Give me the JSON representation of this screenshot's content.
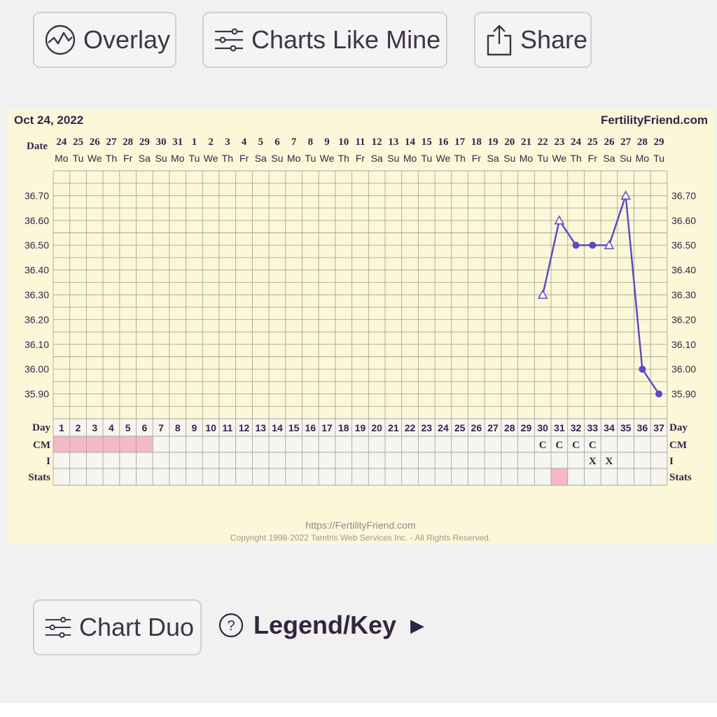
{
  "toolbar": {
    "overlay_label": "Overlay",
    "charts_like_mine_label": "Charts Like Mine",
    "share_label": "Share"
  },
  "footer_controls": {
    "chart_duo_label": "Chart Duo",
    "legend_label": "Legend/Key",
    "legend_arrow": "▶"
  },
  "chart": {
    "start_date": "Oct 24, 2022",
    "site": "FertilityFriend.com",
    "footer_url": "https://FertilityFriend.com",
    "copyright": "Copyright 1998-2022 Tamtris Web Services Inc. - All Rights Reserved.",
    "row_labels": {
      "date": "Date",
      "day": "Day",
      "cm": "CM",
      "i": "I",
      "stats": "Stats"
    }
  },
  "chart_data": {
    "type": "line",
    "dates": [
      "24",
      "25",
      "26",
      "27",
      "28",
      "29",
      "30",
      "31",
      "1",
      "2",
      "3",
      "4",
      "5",
      "6",
      "7",
      "8",
      "9",
      "10",
      "11",
      "12",
      "13",
      "14",
      "15",
      "16",
      "17",
      "18",
      "19",
      "20",
      "21",
      "22",
      "23",
      "24",
      "25",
      "26",
      "27",
      "28",
      "29"
    ],
    "weekdays": [
      "Mo",
      "Tu",
      "We",
      "Th",
      "Fr",
      "Sa",
      "Su",
      "Mo",
      "Tu",
      "We",
      "Th",
      "Fr",
      "Sa",
      "Su",
      "Mo",
      "Tu",
      "We",
      "Th",
      "Fr",
      "Sa",
      "Su",
      "Mo",
      "Tu",
      "We",
      "Th",
      "Fr",
      "Sa",
      "Su",
      "Mo",
      "Tu",
      "We",
      "Th",
      "Fr",
      "Sa",
      "Su",
      "Mo",
      "Tu"
    ],
    "cycle_days": [
      1,
      2,
      3,
      4,
      5,
      6,
      7,
      8,
      9,
      10,
      11,
      12,
      13,
      14,
      15,
      16,
      17,
      18,
      19,
      20,
      21,
      22,
      23,
      24,
      25,
      26,
      27,
      28,
      29,
      30,
      31,
      32,
      33,
      34,
      35,
      36,
      37
    ],
    "y_ticks": [
      "36.70",
      "36.60",
      "36.50",
      "36.40",
      "36.30",
      "36.20",
      "36.10",
      "36.00",
      "35.90"
    ],
    "ylim": [
      35.8,
      36.8
    ],
    "grid": true,
    "temperature_points": [
      {
        "day": 30,
        "temp": 36.3,
        "marker": "open-triangle"
      },
      {
        "day": 31,
        "temp": 36.6,
        "marker": "open-triangle"
      },
      {
        "day": 32,
        "temp": 36.5,
        "marker": "filled-dot"
      },
      {
        "day": 33,
        "temp": 36.5,
        "marker": "filled-dot"
      },
      {
        "day": 34,
        "temp": 36.5,
        "marker": "open-triangle"
      },
      {
        "day": 35,
        "temp": 36.7,
        "marker": "open-triangle"
      },
      {
        "day": 36,
        "temp": 36.0,
        "marker": "filled-dot"
      },
      {
        "day": 37,
        "temp": 35.9,
        "marker": "filled-dot"
      }
    ],
    "period_days": [
      1,
      2,
      3,
      4,
      5,
      6
    ],
    "cm_entries": [
      {
        "day": 30,
        "value": "C"
      },
      {
        "day": 31,
        "value": "C"
      },
      {
        "day": 32,
        "value": "C"
      },
      {
        "day": 33,
        "value": "C"
      }
    ],
    "intercourse_entries": [
      {
        "day": 33,
        "value": "X"
      },
      {
        "day": 34,
        "value": "X"
      }
    ],
    "stats_highlight_days": [
      31
    ],
    "colors": {
      "line": "#5a48c4",
      "grid": "#a8a89a",
      "period": "#f4b8c8",
      "panel": "#fbf7d8",
      "text": "#33254a"
    }
  }
}
